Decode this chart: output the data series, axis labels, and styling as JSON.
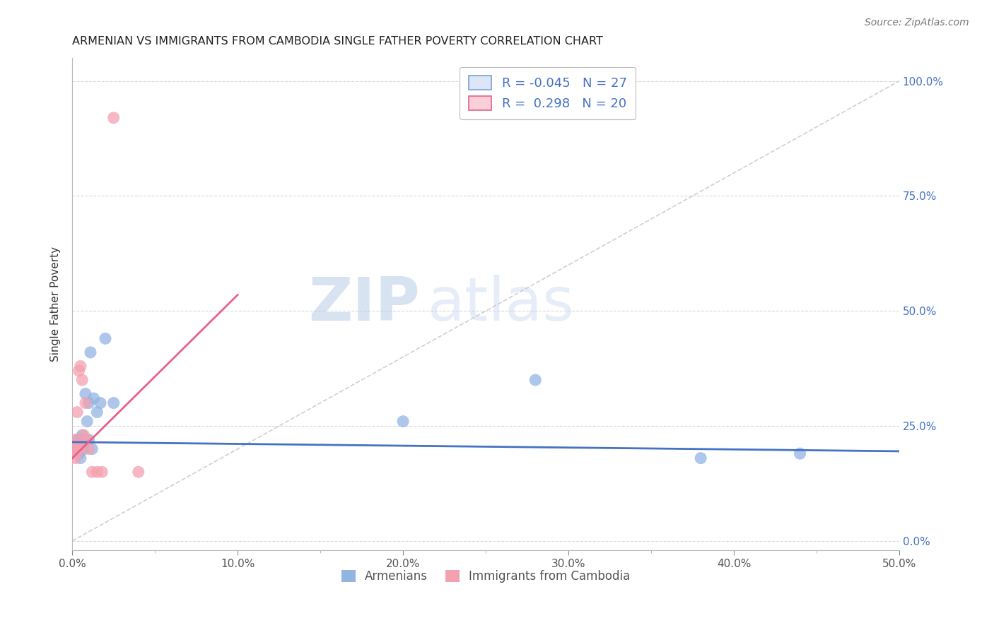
{
  "title": "ARMENIAN VS IMMIGRANTS FROM CAMBODIA SINGLE FATHER POVERTY CORRELATION CHART",
  "source": "Source: ZipAtlas.com",
  "ylabel": "Single Father Poverty",
  "x_ticklabels": [
    "0.0%",
    "",
    "10.0%",
    "",
    "20.0%",
    "",
    "30.0%",
    "",
    "40.0%",
    "",
    "50.0%"
  ],
  "y_ticklabels": [
    "0.0%",
    "25.0%",
    "50.0%",
    "75.0%",
    "100.0%"
  ],
  "xlim": [
    0.0,
    0.5
  ],
  "ylim": [
    -0.02,
    1.05
  ],
  "armenian_R": "-0.045",
  "armenian_N": "27",
  "cambodia_R": "0.298",
  "cambodia_N": "20",
  "armenian_color": "#92b4e3",
  "cambodia_color": "#f4a0b0",
  "armenian_line_color": "#4472c4",
  "cambodia_line_color": "#e8608a",
  "diagonal_color": "#c8c8c8",
  "watermark_zip": "ZIP",
  "watermark_atlas": "atlas",
  "armenian_x": [
    0.001,
    0.002,
    0.003,
    0.003,
    0.004,
    0.004,
    0.005,
    0.005,
    0.006,
    0.006,
    0.007,
    0.007,
    0.008,
    0.009,
    0.01,
    0.01,
    0.011,
    0.012,
    0.013,
    0.015,
    0.017,
    0.02,
    0.025,
    0.2,
    0.28,
    0.38,
    0.44
  ],
  "armenian_y": [
    0.21,
    0.2,
    0.2,
    0.22,
    0.19,
    0.22,
    0.18,
    0.21,
    0.2,
    0.23,
    0.2,
    0.22,
    0.32,
    0.26,
    0.22,
    0.3,
    0.41,
    0.2,
    0.31,
    0.28,
    0.3,
    0.44,
    0.3,
    0.26,
    0.35,
    0.18,
    0.19
  ],
  "cambodia_x": [
    0.001,
    0.001,
    0.002,
    0.002,
    0.003,
    0.003,
    0.004,
    0.004,
    0.005,
    0.005,
    0.006,
    0.007,
    0.008,
    0.009,
    0.01,
    0.012,
    0.015,
    0.018,
    0.04,
    0.025
  ],
  "cambodia_y": [
    0.19,
    0.21,
    0.18,
    0.22,
    0.21,
    0.28,
    0.2,
    0.37,
    0.2,
    0.38,
    0.35,
    0.23,
    0.3,
    0.22,
    0.2,
    0.15,
    0.15,
    0.15,
    0.15,
    0.92
  ],
  "arm_line_x0": 0.0,
  "arm_line_y0": 0.215,
  "arm_line_x1": 0.5,
  "arm_line_y1": 0.195,
  "cam_line_x0": 0.0,
  "cam_line_y0": 0.18,
  "cam_line_x1": 0.1,
  "cam_line_y1": 0.535
}
